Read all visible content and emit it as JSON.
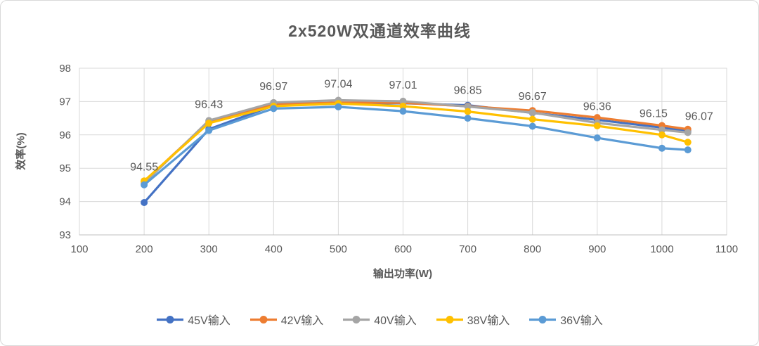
{
  "chart_data": {
    "type": "line",
    "title": "2x520W双通道效率曲线",
    "xlabel": "输出功率(W)",
    "ylabel": "效率(%)",
    "xlim": [
      100,
      1100
    ],
    "ylim": [
      93,
      98
    ],
    "x_ticks": [
      100,
      200,
      300,
      400,
      500,
      600,
      700,
      800,
      900,
      1000,
      1100
    ],
    "y_ticks": [
      93,
      94,
      95,
      96,
      97,
      98
    ],
    "grid": true,
    "legend_position": "bottom",
    "x": [
      200,
      300,
      400,
      500,
      600,
      700,
      800,
      900,
      1000,
      1040
    ],
    "series": [
      {
        "name": "45V输入",
        "color": "#4472C4",
        "values": [
          93.97,
          96.17,
          96.88,
          96.93,
          96.95,
          96.89,
          96.66,
          96.45,
          96.22,
          96.12
        ]
      },
      {
        "name": "42V输入",
        "color": "#ED7D31",
        "values": [
          94.6,
          96.4,
          96.92,
          96.97,
          96.96,
          96.86,
          96.73,
          96.52,
          96.28,
          96.17
        ]
      },
      {
        "name": "40V输入",
        "color": "#A5A5A5",
        "values": [
          94.55,
          96.43,
          96.97,
          97.04,
          97.01,
          96.85,
          96.67,
          96.36,
          96.15,
          96.07
        ]
      },
      {
        "name": "38V输入",
        "color": "#FFC000",
        "values": [
          94.62,
          96.35,
          96.86,
          96.94,
          96.86,
          96.7,
          96.47,
          96.27,
          96.0,
          95.78
        ]
      },
      {
        "name": "36V输入",
        "color": "#5B9BD5",
        "values": [
          94.5,
          96.13,
          96.79,
          96.84,
          96.71,
          96.5,
          96.26,
          95.91,
          95.6,
          95.55
        ]
      }
    ],
    "data_labels": {
      "series": "40V输入",
      "values": [
        "94.55",
        "96.43",
        "96.97",
        "97.04",
        "97.01",
        "96.85",
        "96.67",
        "96.36",
        "96.15",
        "96.07"
      ],
      "dx": [
        0,
        0,
        0,
        0,
        0,
        0,
        0,
        0,
        -12,
        16
      ]
    }
  },
  "style": {
    "text_color": "#595959",
    "grid_color": "#D9D9D9",
    "axis_color": "#BFBFBF",
    "background": "#FFFFFF"
  }
}
